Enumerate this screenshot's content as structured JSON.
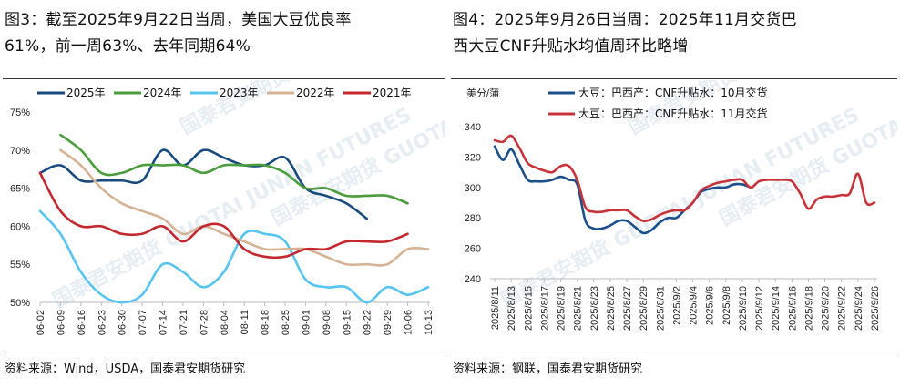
{
  "watermark": "国泰君安期货 GUOTAI JUNAN FUTURES",
  "left": {
    "title_lines": [
      "图3：截至2025年9月22日当周，美国大豆优良率",
      "61%，前一周63%、去年同期64%"
    ],
    "source": "资料来源：Wind，USDA，国泰君安期货研究"
  },
  "right": {
    "title_lines": [
      "图4：2025年9月26日当周：2025年11月交货巴",
      "西大豆CNF升贴水均值周环比略增"
    ],
    "source": "资料来源：钢联，国泰君安期货研究"
  },
  "chart_data": [
    {
      "type": "line",
      "ylim": [
        50,
        75
      ],
      "yticks": [
        "50%",
        "55%",
        "60%",
        "65%",
        "70%",
        "75%"
      ],
      "ytick_values": [
        50,
        55,
        60,
        65,
        70,
        75
      ],
      "legend_placement": "top",
      "grid": false,
      "categories": [
        "06-02",
        "06-09",
        "06-16",
        "06-23",
        "06-30",
        "07-07",
        "07-14",
        "07-21",
        "07-28",
        "08-04",
        "08-11",
        "08-18",
        "08-25",
        "09-01",
        "09-08",
        "09-15",
        "09-22",
        "09-29",
        "10-06",
        "10-13"
      ],
      "series": [
        {
          "name": "2025年",
          "color": "#174a7e",
          "values": [
            67,
            68,
            66,
            66,
            66,
            66,
            70,
            68,
            70,
            69,
            68,
            68,
            69,
            65,
            64,
            63,
            61,
            null,
            null,
            null
          ]
        },
        {
          "name": "2024年",
          "color": "#4b9d3b",
          "values": [
            null,
            72,
            70,
            67,
            67,
            68,
            68,
            68,
            67,
            68,
            68,
            68,
            67,
            65,
            65,
            64,
            64,
            64,
            63,
            null
          ]
        },
        {
          "name": "2023年",
          "color": "#56c4f0",
          "values": [
            62,
            59,
            54,
            51,
            50,
            51,
            55,
            54,
            52,
            54,
            59,
            59,
            58,
            53,
            52,
            52,
            50,
            52,
            51,
            52
          ]
        },
        {
          "name": "2022年",
          "color": "#d6b394",
          "values": [
            null,
            70,
            68,
            65,
            63,
            62,
            61,
            59,
            60,
            59,
            58,
            57,
            57,
            57,
            56,
            55,
            55,
            55,
            57,
            57
          ]
        },
        {
          "name": "2021年",
          "color": "#c3282e",
          "values": [
            67,
            62,
            60,
            60,
            59,
            59,
            60,
            58,
            60,
            60,
            57,
            56,
            56,
            57,
            57,
            58,
            58,
            58,
            59,
            null
          ]
        }
      ]
    },
    {
      "type": "line",
      "unit_label": "美分/蒲",
      "ylim": [
        240,
        340
      ],
      "yticks": [
        "240",
        "260",
        "280",
        "300",
        "320",
        "340"
      ],
      "ytick_values": [
        240,
        260,
        280,
        300,
        320,
        340
      ],
      "legend_placement": "top",
      "grid": false,
      "xtick_labels": [
        "2025/8/11",
        "2025/8/13",
        "2025/8/15",
        "2025/8/17",
        "2025/8/19",
        "2025/8/21",
        "2025/8/23",
        "2025/8/25",
        "2025/8/27",
        "2025/8/29",
        "2025/8/31",
        "2025/9/2",
        "2025/9/4",
        "2025/9/6",
        "2025/9/8",
        "2025/9/10",
        "2025/9/12",
        "2025/9/14",
        "2025/9/16",
        "2025/9/18",
        "2025/9/20",
        "2025/9/22",
        "2025/9/24",
        "2025/9/26"
      ],
      "x": [
        "2025/8/11",
        "2025/8/12",
        "2025/8/13",
        "2025/8/14",
        "2025/8/15",
        "2025/8/16",
        "2025/8/17",
        "2025/8/18",
        "2025/8/19",
        "2025/8/20",
        "2025/8/21",
        "2025/8/22",
        "2025/8/23",
        "2025/8/24",
        "2025/8/25",
        "2025/8/26",
        "2025/8/27",
        "2025/8/28",
        "2025/8/29",
        "2025/8/30",
        "2025/8/31",
        "2025/9/1",
        "2025/9/2",
        "2025/9/3",
        "2025/9/4",
        "2025/9/5",
        "2025/9/6",
        "2025/9/7",
        "2025/9/8",
        "2025/9/9",
        "2025/9/10",
        "2025/9/11",
        "2025/9/12",
        "2025/9/13",
        "2025/9/14",
        "2025/9/15",
        "2025/9/16",
        "2025/9/17",
        "2025/9/18",
        "2025/9/19",
        "2025/9/20",
        "2025/9/21",
        "2025/9/22",
        "2025/9/23",
        "2025/9/24",
        "2025/9/25",
        "2025/9/26"
      ],
      "series": [
        {
          "name": "大豆：巴西产：CNF升贴水：10月交货",
          "color": "#1b4f8c",
          "values": [
            327,
            318,
            325,
            315,
            305,
            304,
            304,
            305,
            307,
            305,
            302,
            278,
            273,
            273,
            275,
            278,
            278,
            274,
            270,
            272,
            277,
            280,
            280,
            285,
            290,
            297,
            299,
            300,
            300,
            302,
            302,
            300,
            null,
            null,
            null,
            null,
            null,
            null,
            null,
            null,
            null,
            null,
            null,
            null,
            null,
            null,
            null
          ]
        },
        {
          "name": "大豆：巴西产：CNF升贴水：11月交货",
          "color": "#c8333a",
          "values": [
            331,
            330,
            334,
            326,
            316,
            313,
            311,
            310,
            314,
            314,
            305,
            287,
            284,
            284,
            285,
            285,
            285,
            281,
            278,
            279,
            282,
            284,
            285,
            285,
            290,
            298,
            301,
            303,
            304,
            305,
            305,
            300,
            304,
            305,
            305,
            305,
            304,
            296,
            286,
            292,
            294,
            294,
            295,
            296,
            309,
            290,
            290
          ]
        }
      ]
    }
  ]
}
